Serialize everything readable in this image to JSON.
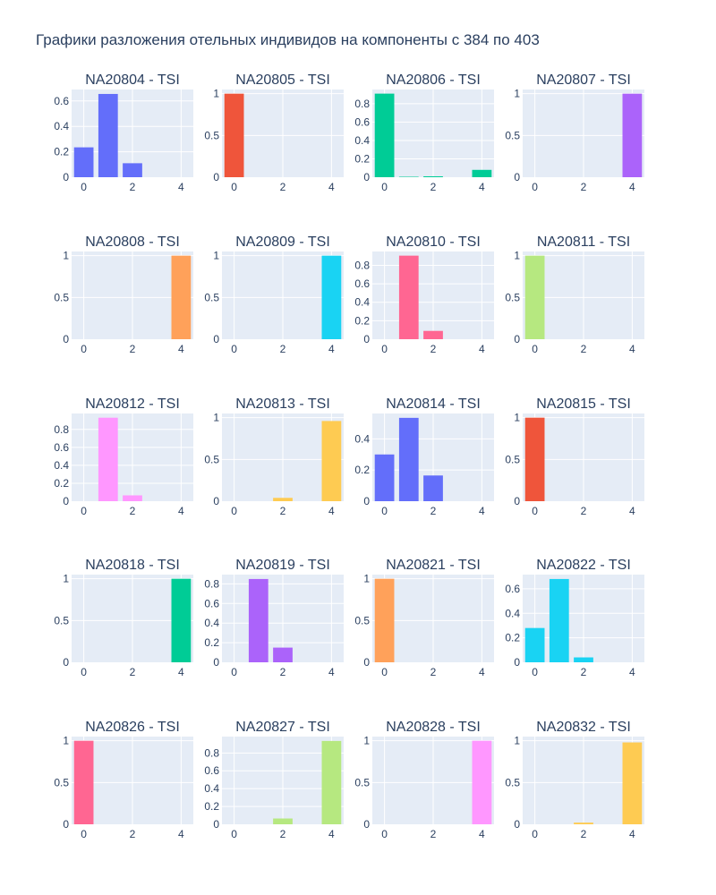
{
  "chart_data": {
    "type": "bar",
    "title": "Графики разложения отельных индивидов на компоненты с 384 по 403",
    "subplot_grid": {
      "rows": 5,
      "cols": 4
    },
    "x_categories": [
      0,
      1,
      2,
      3,
      4
    ],
    "x_tick_labels": [
      "0",
      "2",
      "4"
    ],
    "x_tick_values": [
      0,
      2,
      4
    ],
    "component_colors": [
      "#636efa",
      "#ef553b",
      "#00cc96",
      "#ab63fa",
      "#ffa15a",
      "#19d3f3",
      "#ff6692",
      "#b6e880",
      "#ff97ff",
      "#fecb52"
    ],
    "subplots": [
      {
        "title": "NA20804 - TSI",
        "color": "#636efa",
        "values": [
          0.235,
          0.655,
          0.11,
          0,
          0
        ],
        "ylim": [
          0,
          0.69
        ],
        "y_ticks": [
          0,
          0.2,
          0.4,
          0.6
        ],
        "y_tick_labels": [
          "0",
          "0.2",
          "0.4",
          "0.6"
        ]
      },
      {
        "title": "NA20805 - TSI",
        "color": "#ef553b",
        "values": [
          1.0,
          0,
          0,
          0,
          0
        ],
        "ylim": [
          0,
          1.05
        ],
        "y_ticks": [
          0,
          0.5,
          1
        ],
        "y_tick_labels": [
          "0",
          "0.5",
          "1"
        ]
      },
      {
        "title": "NA20806 - TSI",
        "color": "#00cc96",
        "values": [
          0.91,
          0.005,
          0.01,
          0,
          0.08
        ],
        "ylim": [
          0,
          0.955
        ],
        "y_ticks": [
          0,
          0.2,
          0.4,
          0.6,
          0.8
        ],
        "y_tick_labels": [
          "0",
          "0.2",
          "0.4",
          "0.6",
          "0.8"
        ]
      },
      {
        "title": "NA20807 - TSI",
        "color": "#ab63fa",
        "values": [
          0,
          0,
          0,
          0,
          1.0
        ],
        "ylim": [
          0,
          1.05
        ],
        "y_ticks": [
          0,
          0.5,
          1
        ],
        "y_tick_labels": [
          "0",
          "0.5",
          "1"
        ]
      },
      {
        "title": "NA20808 - TSI",
        "color": "#ffa15a",
        "values": [
          0,
          0,
          0,
          0,
          1.0
        ],
        "ylim": [
          0,
          1.05
        ],
        "y_ticks": [
          0,
          0.5,
          1
        ],
        "y_tick_labels": [
          "0",
          "0.5",
          "1"
        ]
      },
      {
        "title": "NA20809 - TSI",
        "color": "#19d3f3",
        "values": [
          0,
          0,
          0,
          0,
          1.0
        ],
        "ylim": [
          0,
          1.05
        ],
        "y_ticks": [
          0,
          0.5,
          1
        ],
        "y_tick_labels": [
          "0",
          "0.5",
          "1"
        ]
      },
      {
        "title": "NA20810 - TSI",
        "color": "#ff6692",
        "values": [
          0,
          0.905,
          0.09,
          0,
          0
        ],
        "ylim": [
          0,
          0.95
        ],
        "y_ticks": [
          0,
          0.2,
          0.4,
          0.6,
          0.8
        ],
        "y_tick_labels": [
          "0",
          "0.2",
          "0.4",
          "0.6",
          "0.8"
        ]
      },
      {
        "title": "NA20811 - TSI",
        "color": "#b6e880",
        "values": [
          1.0,
          0,
          0,
          0,
          0
        ],
        "ylim": [
          0,
          1.05
        ],
        "y_ticks": [
          0,
          0.5,
          1
        ],
        "y_tick_labels": [
          "0",
          "0.5",
          "1"
        ]
      },
      {
        "title": "NA20812 - TSI",
        "color": "#ff97ff",
        "values": [
          0,
          0.93,
          0.065,
          0,
          0
        ],
        "ylim": [
          0,
          0.977
        ],
        "y_ticks": [
          0,
          0.2,
          0.4,
          0.6,
          0.8
        ],
        "y_tick_labels": [
          "0",
          "0.2",
          "0.4",
          "0.6",
          "0.8"
        ]
      },
      {
        "title": "NA20813 - TSI",
        "color": "#fecb52",
        "values": [
          0,
          0,
          0.04,
          0,
          0.96
        ],
        "ylim": [
          0,
          1.05
        ],
        "y_ticks": [
          0,
          0.5,
          1
        ],
        "y_tick_labels": [
          "0",
          "0.5",
          "1"
        ]
      },
      {
        "title": "NA20814 - TSI",
        "color": "#636efa",
        "values": [
          0.3,
          0.535,
          0.165,
          0,
          0
        ],
        "ylim": [
          0,
          0.563
        ],
        "y_ticks": [
          0,
          0.2,
          0.4
        ],
        "y_tick_labels": [
          "0",
          "0.2",
          "0.4"
        ]
      },
      {
        "title": "NA20815 - TSI",
        "color": "#ef553b",
        "values": [
          1.0,
          0,
          0,
          0,
          0
        ],
        "ylim": [
          0,
          1.05
        ],
        "y_ticks": [
          0,
          0.5,
          1
        ],
        "y_tick_labels": [
          "0",
          "0.5",
          "1"
        ]
      },
      {
        "title": "NA20818 - TSI",
        "color": "#00cc96",
        "values": [
          0,
          0,
          0,
          0,
          1.0
        ],
        "ylim": [
          0,
          1.05
        ],
        "y_ticks": [
          0,
          0.5,
          1
        ],
        "y_tick_labels": [
          "0",
          "0.5",
          "1"
        ]
      },
      {
        "title": "NA20819 - TSI",
        "color": "#ab63fa",
        "values": [
          0,
          0.85,
          0.15,
          0,
          0
        ],
        "ylim": [
          0,
          0.895
        ],
        "y_ticks": [
          0,
          0.2,
          0.4,
          0.6,
          0.8
        ],
        "y_tick_labels": [
          "0",
          "0.2",
          "0.4",
          "0.6",
          "0.8"
        ]
      },
      {
        "title": "NA20821 - TSI",
        "color": "#ffa15a",
        "values": [
          1.0,
          0,
          0,
          0,
          0
        ],
        "ylim": [
          0,
          1.05
        ],
        "y_ticks": [
          0,
          0.5,
          1
        ],
        "y_tick_labels": [
          "0",
          "0.5",
          "1"
        ]
      },
      {
        "title": "NA20822 - TSI",
        "color": "#19d3f3",
        "values": [
          0.28,
          0.68,
          0.04,
          0,
          0
        ],
        "ylim": [
          0,
          0.716
        ],
        "y_ticks": [
          0,
          0.2,
          0.4,
          0.6
        ],
        "y_tick_labels": [
          "0",
          "0.2",
          "0.4",
          "0.6"
        ]
      },
      {
        "title": "NA20826 - TSI",
        "color": "#ff6692",
        "values": [
          1.0,
          0,
          0,
          0,
          0
        ],
        "ylim": [
          0,
          1.05
        ],
        "y_ticks": [
          0,
          0.5,
          1
        ],
        "y_tick_labels": [
          "0",
          "0.5",
          "1"
        ]
      },
      {
        "title": "NA20827 - TSI",
        "color": "#b6e880",
        "values": [
          0,
          0,
          0.065,
          0,
          0.935
        ],
        "ylim": [
          0,
          0.984
        ],
        "y_ticks": [
          0,
          0.2,
          0.4,
          0.6,
          0.8
        ],
        "y_tick_labels": [
          "0",
          "0.2",
          "0.4",
          "0.6",
          "0.8"
        ]
      },
      {
        "title": "NA20828 - TSI",
        "color": "#ff97ff",
        "values": [
          0,
          0,
          0,
          0,
          1.0
        ],
        "ylim": [
          0,
          1.05
        ],
        "y_ticks": [
          0,
          0.5,
          1
        ],
        "y_tick_labels": [
          "0",
          "0.5",
          "1"
        ]
      },
      {
        "title": "NA20832 - TSI",
        "color": "#fecb52",
        "values": [
          0,
          0,
          0.02,
          0,
          0.98
        ],
        "ylim": [
          0,
          1.05
        ],
        "y_ticks": [
          0,
          0.5,
          1
        ],
        "y_tick_labels": [
          "0",
          "0.5",
          "1"
        ]
      }
    ],
    "grid": true,
    "legend": "none"
  }
}
